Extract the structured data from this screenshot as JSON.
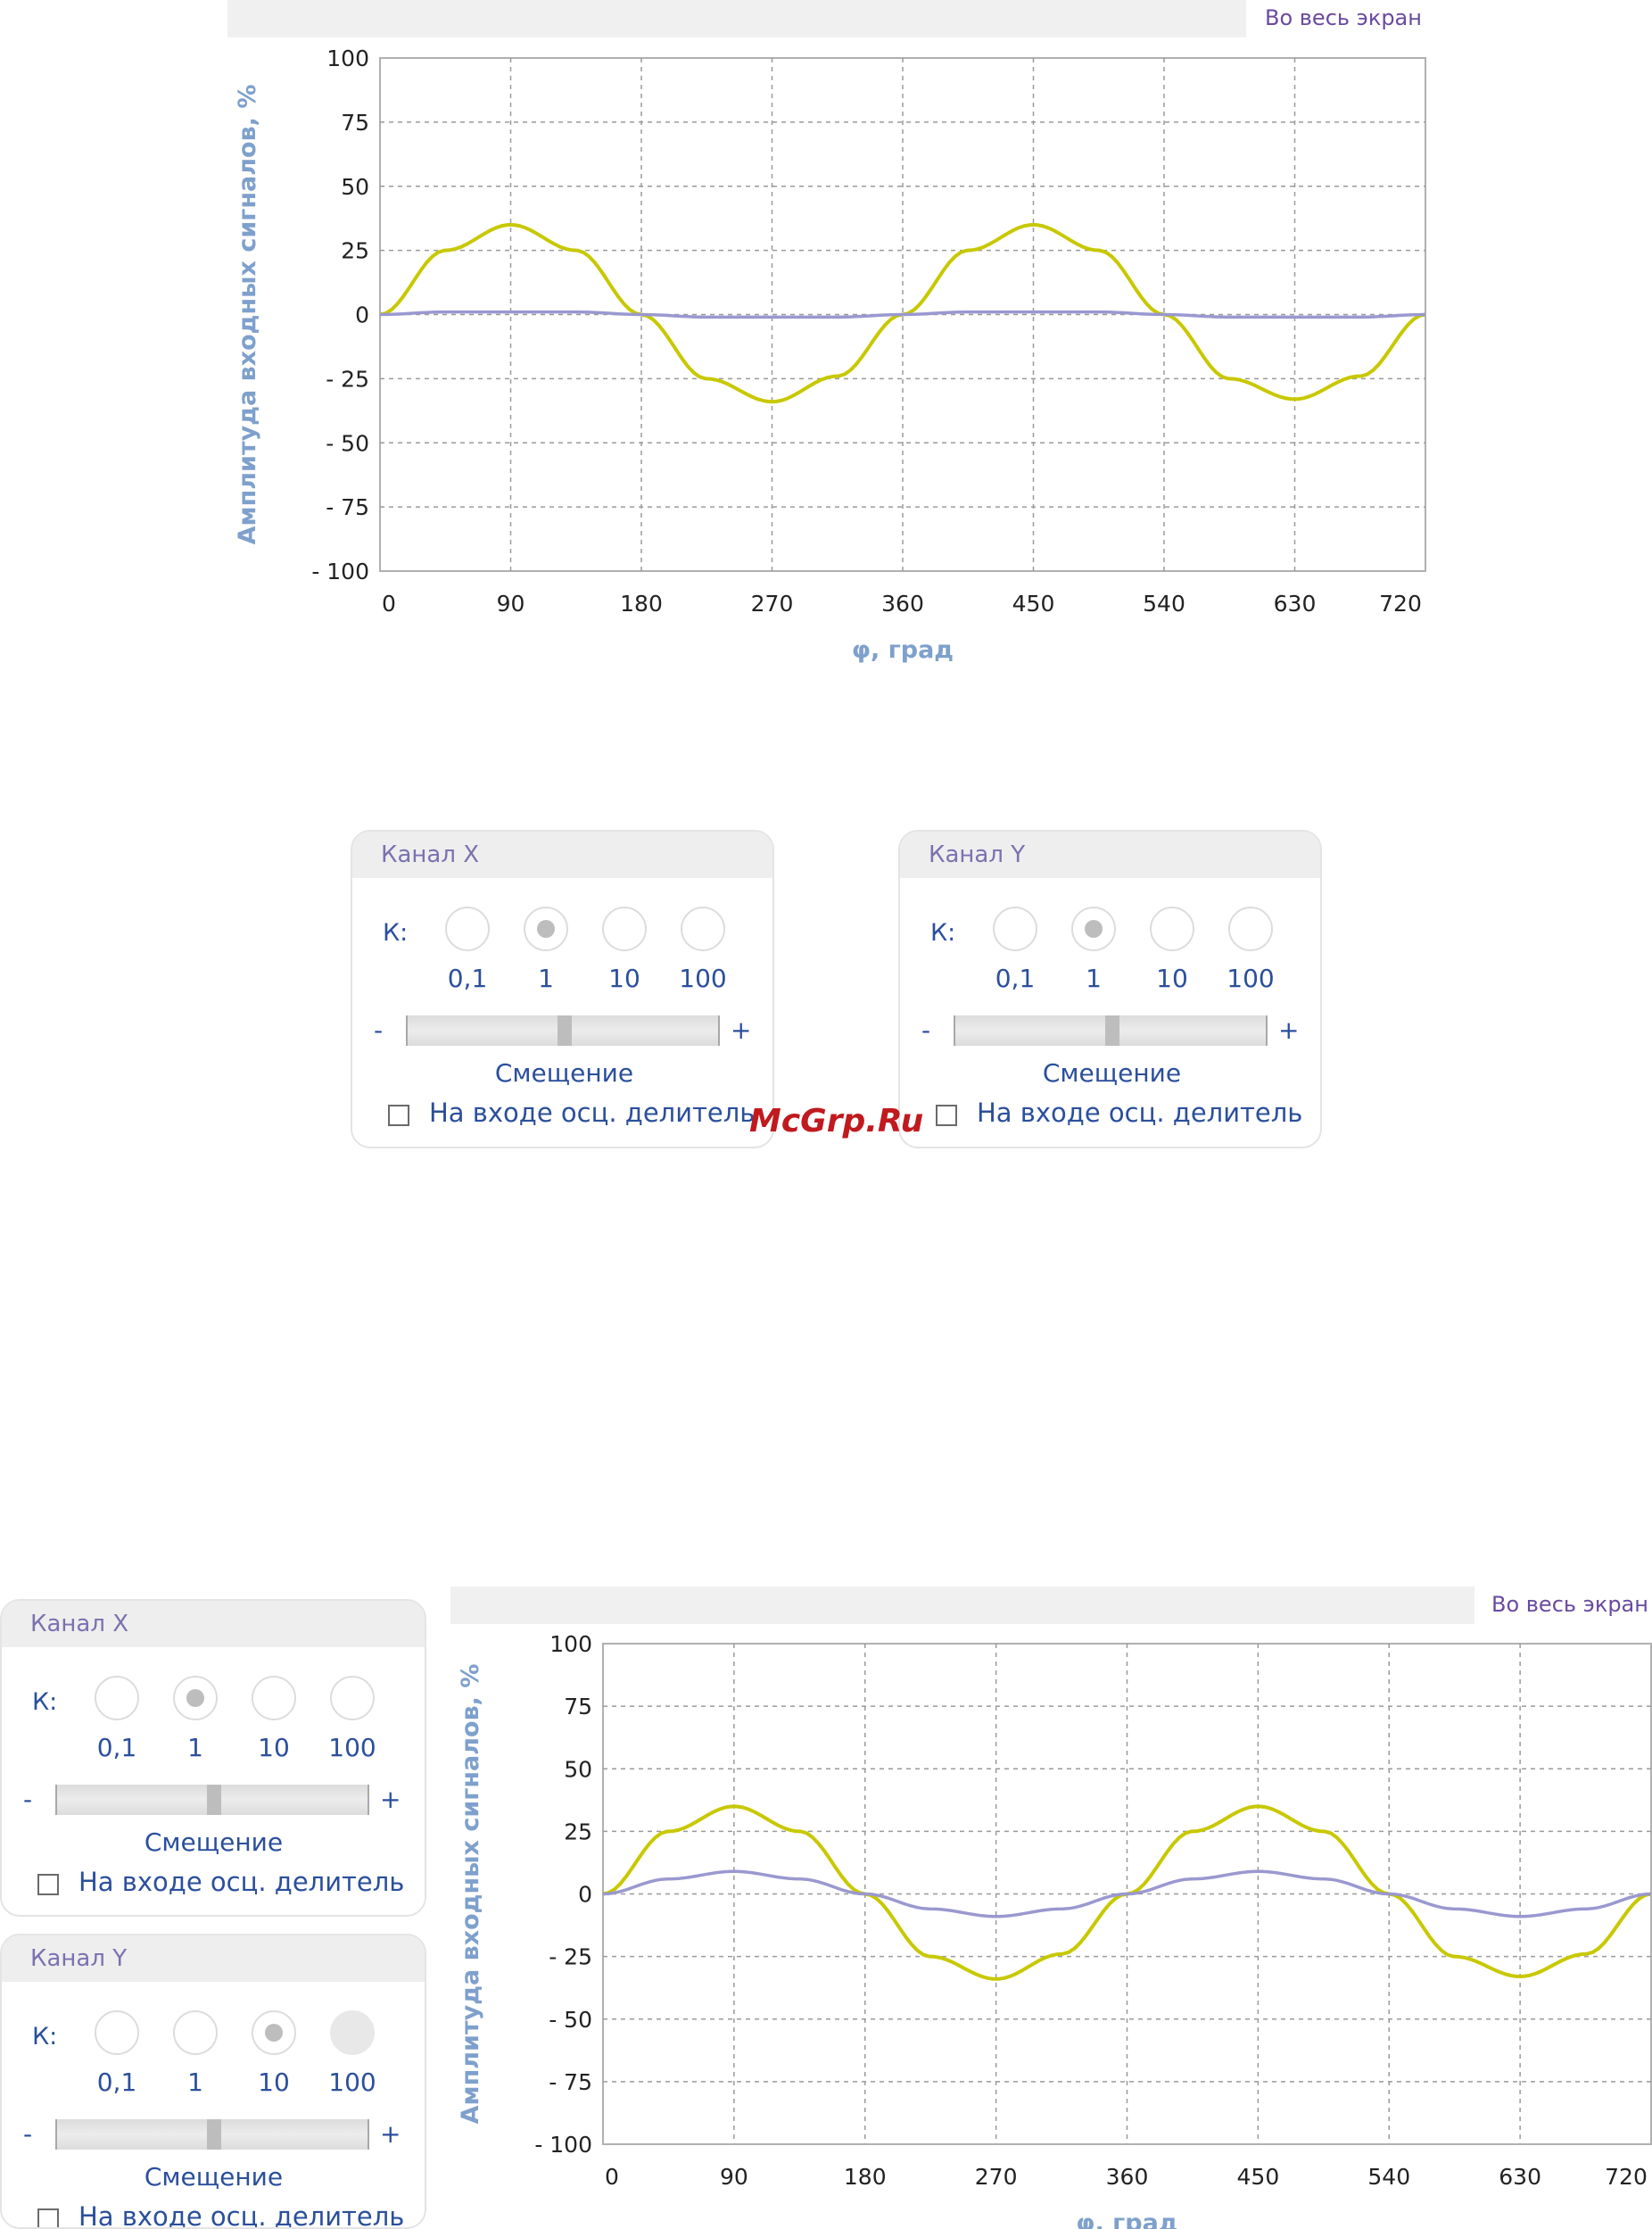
{
  "fullscreen_label": "Во весь экран",
  "watermark": "McGrp.Ru",
  "chart_data": [
    {
      "type": "line",
      "title": "",
      "xlabel": "φ, град",
      "ylabel": "Амплитуда входных сигналов, %",
      "xlim": [
        0,
        720
      ],
      "ylim": [
        -100,
        100
      ],
      "x_ticks": [
        "0",
        "90",
        "180",
        "270",
        "360",
        "450",
        "540",
        "630",
        "720"
      ],
      "y_ticks": [
        "100",
        "75",
        "50",
        "25",
        "0",
        "- 25",
        "- 50",
        "- 75",
        "- 100"
      ],
      "grid": true,
      "series": [
        {
          "color": "#c8c800",
          "x": [
            0,
            45,
            90,
            135,
            180,
            225,
            270,
            315,
            360,
            405,
            450,
            495,
            540,
            585,
            630,
            675,
            720
          ],
          "y": [
            0,
            25,
            35,
            25,
            0,
            -25,
            -34,
            -24,
            0,
            25,
            35,
            25,
            0,
            -25,
            -33,
            -24,
            0
          ]
        },
        {
          "color": "#9a98d0",
          "x": [
            0,
            45,
            90,
            135,
            180,
            225,
            270,
            315,
            360,
            405,
            450,
            495,
            540,
            585,
            630,
            675,
            720
          ],
          "y": [
            0,
            1,
            1,
            1,
            0,
            -1,
            -1,
            -1,
            0,
            1,
            1,
            1,
            0,
            -1,
            -1,
            -1,
            0
          ]
        }
      ]
    },
    {
      "type": "line",
      "title": "",
      "xlabel": "φ, град",
      "ylabel": "Амплитуда входных сигналов, %",
      "xlim": [
        0,
        720
      ],
      "ylim": [
        -100,
        100
      ],
      "x_ticks": [
        "0",
        "90",
        "180",
        "270",
        "360",
        "450",
        "540",
        "630",
        "720"
      ],
      "y_ticks": [
        "100",
        "75",
        "50",
        "25",
        "0",
        "- 25",
        "- 50",
        "- 75",
        "- 100"
      ],
      "grid": true,
      "series": [
        {
          "color": "#c8c800",
          "x": [
            0,
            45,
            90,
            135,
            180,
            225,
            270,
            315,
            360,
            405,
            450,
            495,
            540,
            585,
            630,
            675,
            720
          ],
          "y": [
            0,
            25,
            35,
            25,
            0,
            -25,
            -34,
            -24,
            0,
            25,
            35,
            25,
            0,
            -25,
            -33,
            -24,
            0
          ]
        },
        {
          "color": "#9a98d0",
          "x": [
            0,
            45,
            90,
            135,
            180,
            225,
            270,
            315,
            360,
            405,
            450,
            495,
            540,
            585,
            630,
            675,
            720
          ],
          "y": [
            0,
            6,
            9,
            6,
            0,
            -6,
            -9,
            -6,
            0,
            6,
            9,
            6,
            0,
            -6,
            -9,
            -6,
            0
          ]
        }
      ]
    }
  ],
  "panels": [
    {
      "title": "Канал X",
      "k_label": "К:",
      "options": [
        "0,1",
        "1",
        "10",
        "100"
      ],
      "selected": 1,
      "offset_label": "Смещение",
      "minus": "-",
      "plus": "+",
      "offset_value": 0.5,
      "checkbox_label": "На входе осц. делитель",
      "checked": false
    },
    {
      "title": "Канал Y",
      "k_label": "К:",
      "options": [
        "0,1",
        "1",
        "10",
        "100"
      ],
      "selected": 1,
      "offset_label": "Смещение",
      "minus": "-",
      "plus": "+",
      "offset_value": 0.5,
      "checkbox_label": "На входе осц. делитель",
      "checked": false
    },
    {
      "title": "Канал X",
      "k_label": "К:",
      "options": [
        "0,1",
        "1",
        "10",
        "100"
      ],
      "selected": 1,
      "offset_label": "Смещение",
      "minus": "-",
      "plus": "+",
      "offset_value": 0.5,
      "checkbox_label": "На входе осц. делитель",
      "checked": false
    },
    {
      "title": "Канал Y",
      "k_label": "К:",
      "options": [
        "0,1",
        "1",
        "10",
        "100"
      ],
      "selected": 2,
      "hover": 3,
      "offset_label": "Смещение",
      "minus": "-",
      "plus": "+",
      "offset_value": 0.5,
      "checkbox_label": "На входе осц. делитель",
      "checked": false
    }
  ]
}
